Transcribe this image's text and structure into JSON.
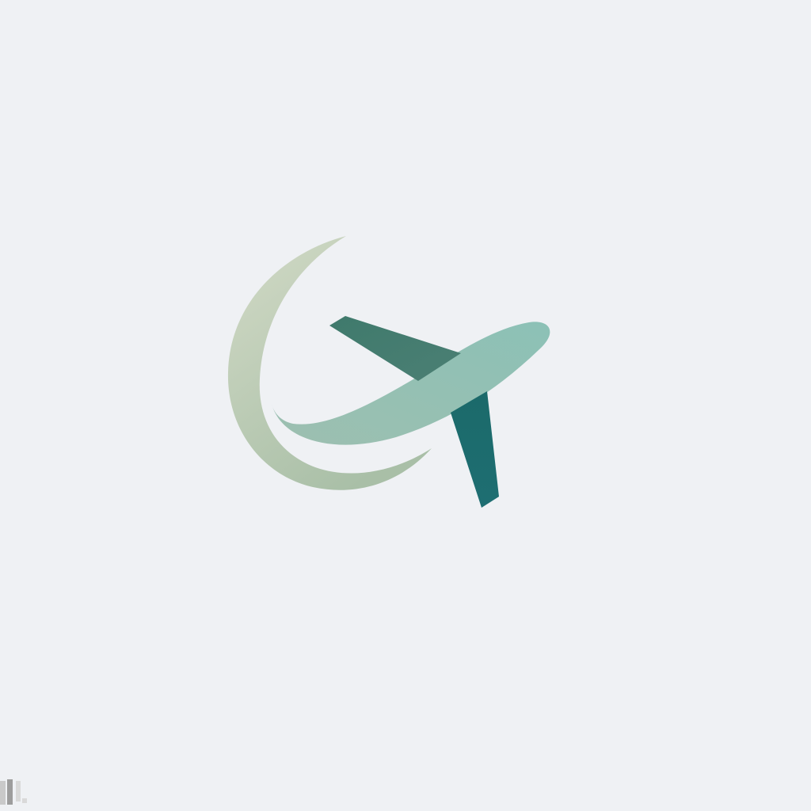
{
  "logo": {
    "icon": "airplane-logo-icon",
    "colors": {
      "background": "#eff1f4",
      "crescent_light": "#d2dac6",
      "crescent_mid": "#a9bfa7",
      "swoosh_start": "#9dbfb0",
      "swoosh_end": "#8cc1b6",
      "upper_wing": "#4b7f74",
      "lower_wing": "#1e6e72"
    }
  },
  "corner_mark": {
    "icon": "generator-watermark-icon",
    "colors": {
      "block1": "#c9c9c9",
      "block2": "#9d9d9d",
      "block3": "#d9d9d9"
    }
  }
}
